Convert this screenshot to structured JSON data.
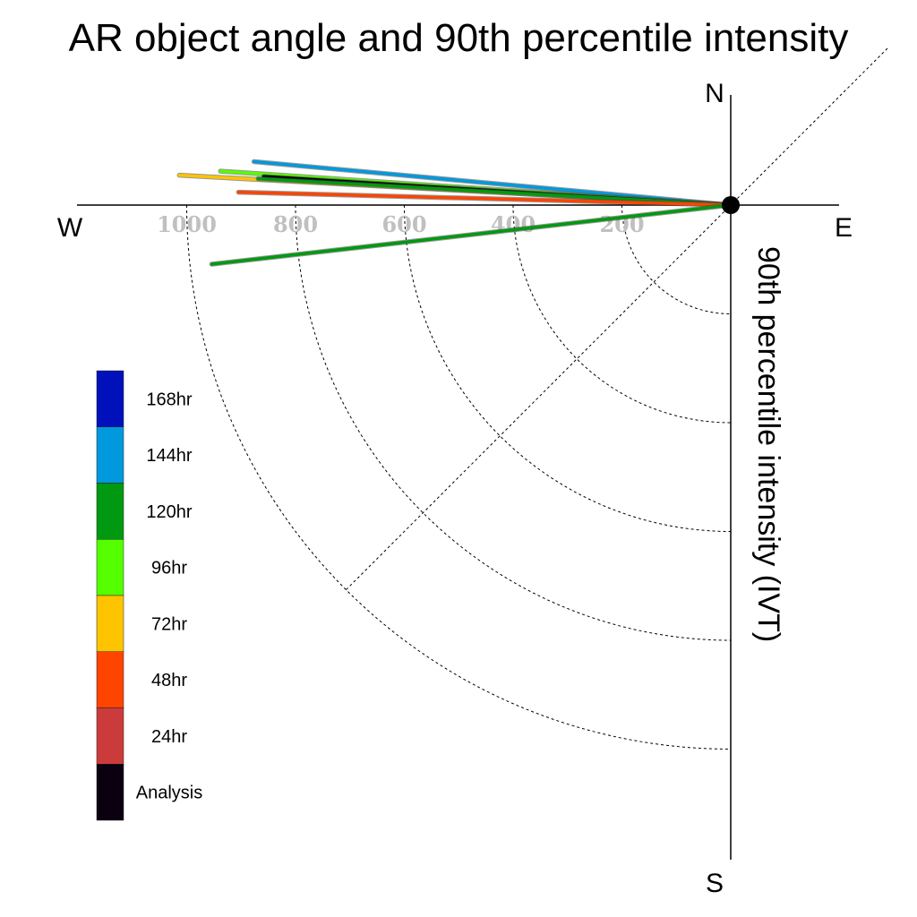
{
  "chart_data": {
    "type": "polar-vector",
    "title": "AR object angle and 90th percentile intensity",
    "ylabel": "90th percentile intensity (IVT)",
    "compass": {
      "north": "N",
      "south": "S",
      "east": "E",
      "west": "W"
    },
    "radial_ticks": [
      "200",
      "400",
      "600",
      "800",
      "1000"
    ],
    "rlim": [
      0,
      1000
    ],
    "grid": true,
    "legend_position": "left",
    "legend": [
      {
        "label": "168hr",
        "color": "#0011bb"
      },
      {
        "label": "144hr",
        "color": "#0099dd"
      },
      {
        "label": "120hr",
        "color": "#009911"
      },
      {
        "label": "96hr",
        "color": "#55ff00"
      },
      {
        "label": "72hr",
        "color": "#ffc400"
      },
      {
        "label": "48hr",
        "color": "#ff4400"
      },
      {
        "label": "24hr",
        "color": "#cc3b3b"
      },
      {
        "label": "Analysis",
        "color": "#0a0010"
      }
    ],
    "series": [
      {
        "name": "144hr",
        "color": "#0099dd",
        "intensity": 880,
        "angle_deg": 174.8
      },
      {
        "name": "72hr",
        "color": "#ffc400",
        "intensity": 1015,
        "angle_deg": 176.9
      },
      {
        "name": "96hr",
        "color": "#55ff00",
        "intensity": 940,
        "angle_deg": 176.2
      },
      {
        "name": "Analysis",
        "color": "#0a0010",
        "intensity": 860,
        "angle_deg": 176.5
      },
      {
        "name": "120hr",
        "color": "#009911",
        "intensity": 870,
        "angle_deg": 176.8
      },
      {
        "name": "48hr",
        "color": "#ff4400",
        "intensity": 905,
        "angle_deg": 178.5
      },
      {
        "name": "120hr",
        "color": "#009911",
        "intensity": 960,
        "angle_deg": 186.5
      }
    ]
  }
}
